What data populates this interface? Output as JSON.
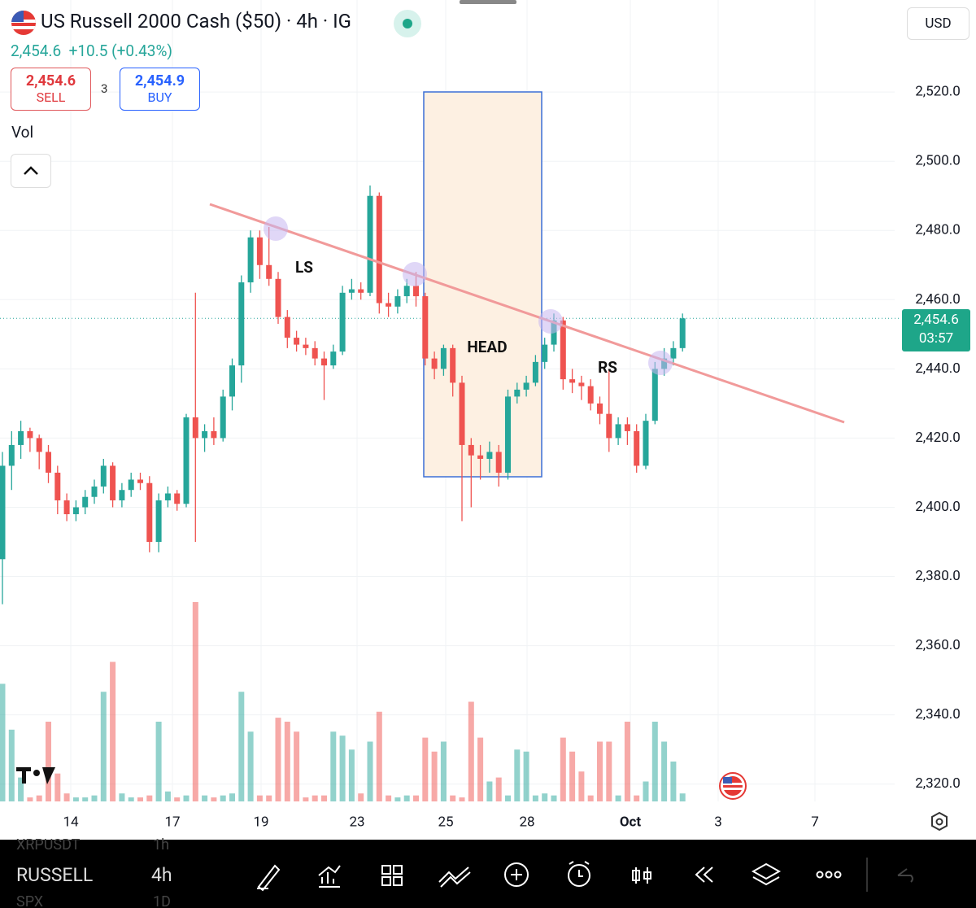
{
  "header": {
    "title": "US Russell 2000 Cash ($50) · 4h · IG",
    "price": "2,454.6",
    "change": "+10.5 (+0.43%)",
    "sell_price": "2,454.6",
    "sell": "SELL",
    "spread": "3",
    "buy_price": "2,454.9",
    "buy": "BUY",
    "vol": "Vol",
    "currency": "USD"
  },
  "chart_data": {
    "type": "candlestick",
    "up_color": "#26a69a",
    "down_color": "#ef5350",
    "ylim": [
      2315,
      2546.6
    ],
    "yticks": [
      {
        "value": 2320,
        "label": "2,320.0"
      },
      {
        "value": 2340,
        "label": "2,340.0"
      },
      {
        "value": 2360,
        "label": "2,360.0"
      },
      {
        "value": 2380,
        "label": "2,380.0"
      },
      {
        "value": 2400,
        "label": "2,400.0"
      },
      {
        "value": 2420,
        "label": "2,420.0"
      },
      {
        "value": 2440,
        "label": "2,440.0"
      },
      {
        "value": 2460,
        "label": "2,460.0"
      },
      {
        "value": 2480,
        "label": "2,480.0"
      },
      {
        "value": 2500,
        "label": "2,500.0"
      },
      {
        "value": 2520,
        "label": "2,520.0"
      }
    ],
    "last_price": {
      "value": 2454.6,
      "label": "2,454.6",
      "countdown": "03:57"
    },
    "xlabels": [
      "14",
      "17",
      "19",
      "23",
      "25",
      "28",
      "Oct",
      "3",
      "7"
    ],
    "annotations": [
      "LS",
      "HEAD",
      "RS"
    ],
    "candles": [
      [
        2385,
        2416,
        2372,
        2412
      ],
      [
        2412,
        2422,
        2405,
        2418
      ],
      [
        2418,
        2425,
        2414,
        2422
      ],
      [
        2422,
        2423,
        2416,
        2420
      ],
      [
        2420,
        2421,
        2411,
        2416
      ],
      [
        2416,
        2418,
        2407,
        2410
      ],
      [
        2410,
        2412,
        2398,
        2402
      ],
      [
        2402,
        2404,
        2396,
        2398
      ],
      [
        2398,
        2402,
        2396,
        2400
      ],
      [
        2400,
        2405,
        2398,
        2403
      ],
      [
        2403,
        2408,
        2401,
        2406
      ],
      [
        2406,
        2414,
        2404,
        2412
      ],
      [
        2412,
        2413,
        2400,
        2402
      ],
      [
        2402,
        2407,
        2400,
        2405
      ],
      [
        2405,
        2410,
        2403,
        2408
      ],
      [
        2408,
        2410,
        2405,
        2407
      ],
      [
        2407,
        2409,
        2387,
        2390
      ],
      [
        2390,
        2404,
        2387,
        2402
      ],
      [
        2402,
        2406,
        2400,
        2404
      ],
      [
        2404,
        2405,
        2399,
        2401
      ],
      [
        2401,
        2427,
        2400,
        2426
      ],
      [
        2426,
        2462,
        2390,
        2420
      ],
      [
        2420,
        2424,
        2416,
        2422
      ],
      [
        2422,
        2426,
        2418,
        2420
      ],
      [
        2420,
        2434,
        2419,
        2432
      ],
      [
        2432,
        2443,
        2428,
        2441
      ],
      [
        2441,
        2467,
        2436,
        2465
      ],
      [
        2465,
        2480,
        2462,
        2478
      ],
      [
        2478,
        2480,
        2466,
        2470
      ],
      [
        2470,
        2481,
        2464,
        2466
      ],
      [
        2466,
        2468,
        2453,
        2455
      ],
      [
        2455,
        2457,
        2446,
        2449
      ],
      [
        2449,
        2451,
        2445,
        2447
      ],
      [
        2447,
        2449,
        2444,
        2446
      ],
      [
        2446,
        2448,
        2441,
        2443
      ],
      [
        2443,
        2445,
        2431,
        2441
      ],
      [
        2441,
        2447,
        2440,
        2445
      ],
      [
        2445,
        2464,
        2444,
        2462
      ],
      [
        2462,
        2466,
        2460,
        2463
      ],
      [
        2463,
        2465,
        2460,
        2462
      ],
      [
        2462,
        2493,
        2461,
        2490
      ],
      [
        2490,
        2491,
        2456,
        2459
      ],
      [
        2459,
        2462,
        2455,
        2458
      ],
      [
        2458,
        2463,
        2456,
        2461
      ],
      [
        2461,
        2466,
        2459,
        2464
      ],
      [
        2464,
        2468,
        2458,
        2461
      ],
      [
        2461,
        2462,
        2441,
        2443
      ],
      [
        2443,
        2445,
        2437,
        2440
      ],
      [
        2440,
        2447,
        2438,
        2446
      ],
      [
        2446,
        2447,
        2432,
        2436
      ],
      [
        2436,
        2438,
        2396,
        2418
      ],
      [
        2418,
        2420,
        2400,
        2415
      ],
      [
        2415,
        2418,
        2408,
        2414
      ],
      [
        2414,
        2419,
        2410,
        2416
      ],
      [
        2416,
        2418,
        2406,
        2410
      ],
      [
        2410,
        2434,
        2408,
        2432
      ],
      [
        2432,
        2436,
        2430,
        2434
      ],
      [
        2434,
        2438,
        2432,
        2436
      ],
      [
        2436,
        2444,
        2435,
        2442
      ],
      [
        2442,
        2449,
        2440,
        2447
      ],
      [
        2447,
        2456,
        2445,
        2454
      ],
      [
        2454,
        2455,
        2434,
        2437
      ],
      [
        2437,
        2440,
        2433,
        2436
      ],
      [
        2436,
        2438,
        2431,
        2435
      ],
      [
        2435,
        2437,
        2428,
        2430
      ],
      [
        2430,
        2432,
        2424,
        2427
      ],
      [
        2427,
        2440,
        2416,
        2420
      ],
      [
        2420,
        2426,
        2418,
        2424
      ],
      [
        2424,
        2426,
        2418,
        2422
      ],
      [
        2422,
        2424,
        2410,
        2412
      ],
      [
        2412,
        2427,
        2411,
        2425
      ],
      [
        2425,
        2442,
        2424,
        2440
      ],
      [
        2440,
        2446,
        2438,
        2443
      ],
      [
        2443,
        2448,
        2441,
        2446
      ],
      [
        2446,
        2456,
        2445,
        2454.6
      ]
    ],
    "volumes": [
      59,
      36,
      12,
      2,
      3,
      40,
      14,
      4,
      2,
      2,
      3,
      55,
      70,
      4,
      2,
      2,
      3,
      40,
      5,
      2,
      3,
      100,
      3,
      2,
      3,
      4,
      55,
      35,
      3,
      3,
      42,
      40,
      35,
      2,
      3,
      3,
      35,
      33,
      26,
      4,
      30,
      45,
      3,
      2,
      3,
      3,
      32,
      25,
      30,
      3,
      2,
      50,
      32,
      10,
      12,
      3,
      26,
      25,
      3,
      4,
      3,
      32,
      25,
      15,
      3,
      30,
      30,
      3,
      40,
      3,
      10,
      40,
      30,
      20,
      4
    ]
  },
  "toolbar": {
    "symbol": "RUSSELL",
    "interval": "4h",
    "prev_symbol": "XRPUSDT",
    "prev_interval": "1h",
    "next_symbol": "SPX",
    "next_interval": "1D"
  }
}
